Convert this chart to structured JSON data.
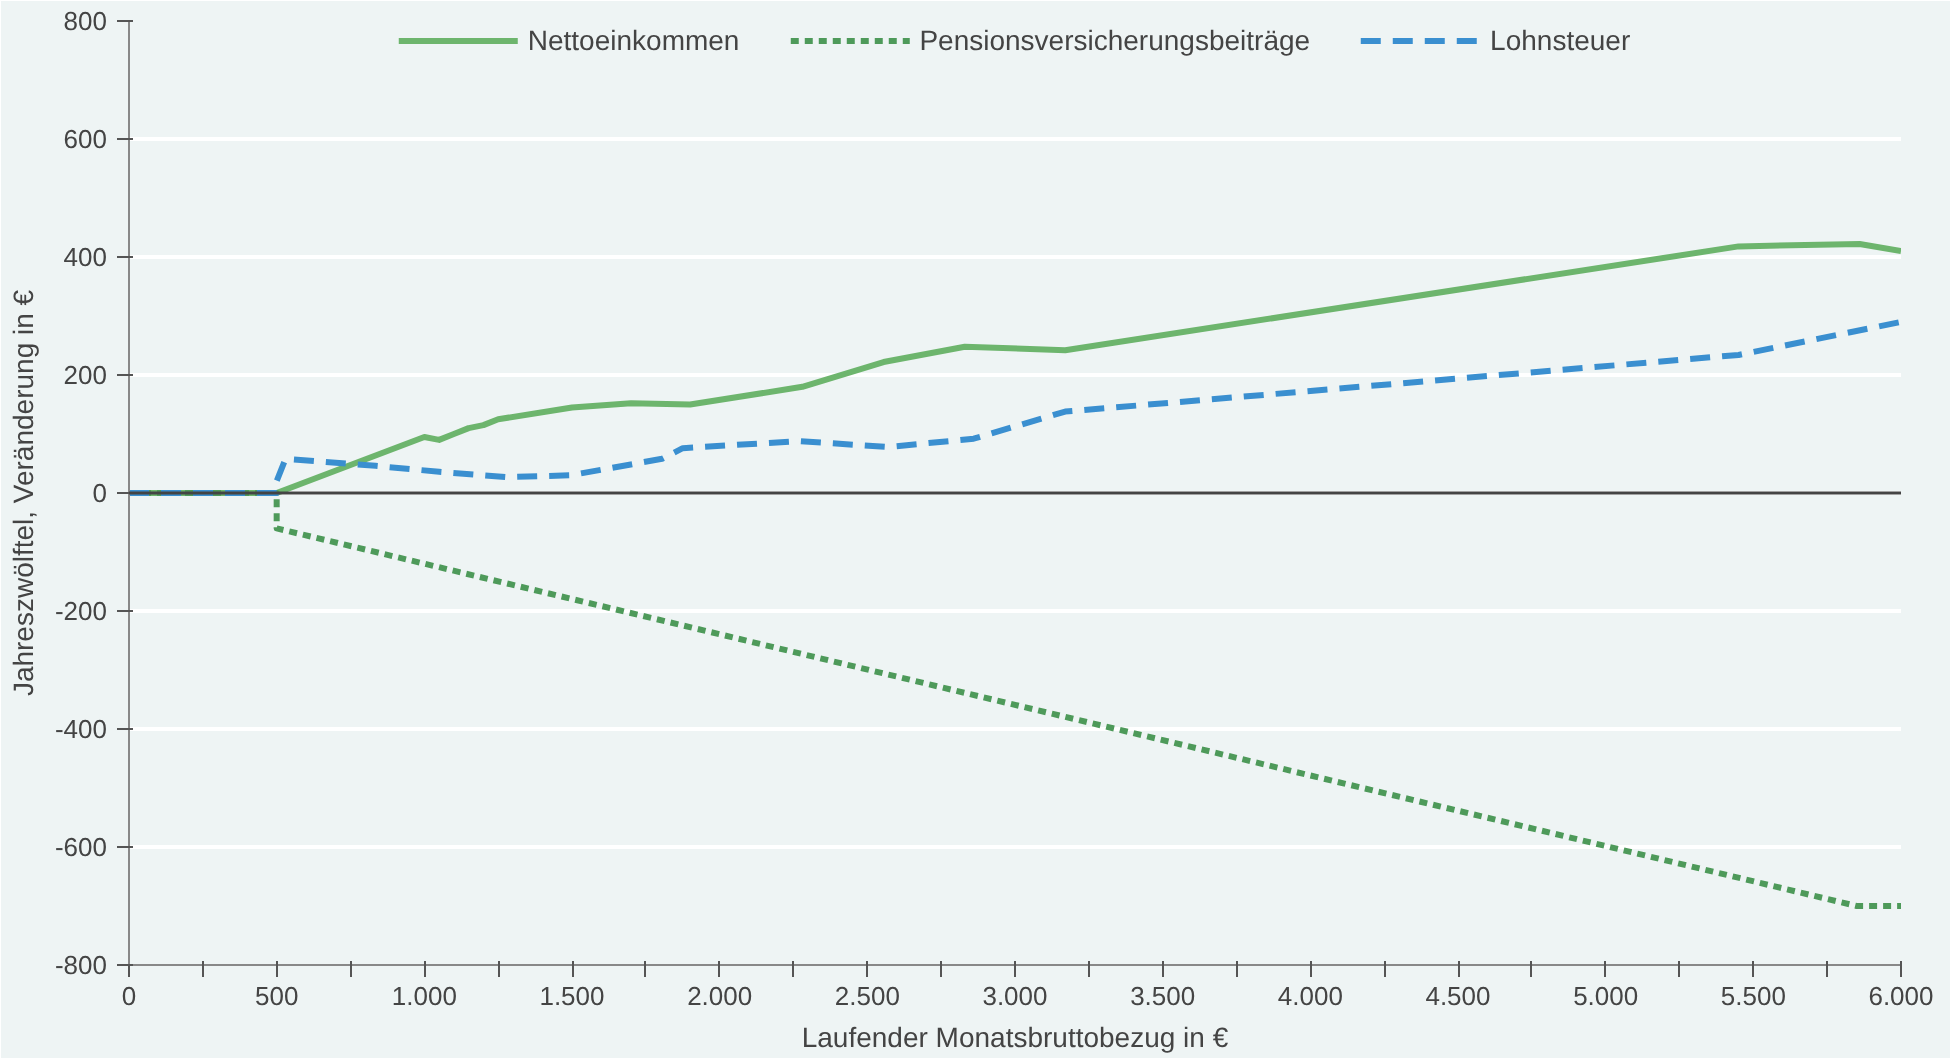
{
  "chart_data": {
    "type": "line",
    "xlabel": "Laufender Monatsbruttobezug in €",
    "ylabel": "Jahreszwölftel, Veränderung in €",
    "xlim": [
      0,
      6000
    ],
    "ylim": [
      -800,
      800
    ],
    "xticks": [
      0,
      {
        "value": 250,
        "label": null
      },
      500,
      {
        "value": 750,
        "label": null
      },
      {
        "value": 1000,
        "label": "1.000"
      },
      {
        "value": 1250,
        "label": null
      },
      {
        "value": 1500,
        "label": "1.500"
      },
      {
        "value": 1750,
        "label": null
      },
      {
        "value": 2000,
        "label": "2.000"
      },
      {
        "value": 2250,
        "label": null
      },
      {
        "value": 2500,
        "label": "2.500"
      },
      {
        "value": 2750,
        "label": null
      },
      {
        "value": 3000,
        "label": "3.000"
      },
      {
        "value": 3250,
        "label": null
      },
      {
        "value": 3500,
        "label": "3.500"
      },
      {
        "value": 3750,
        "label": null
      },
      {
        "value": 4000,
        "label": "4.000"
      },
      {
        "value": 4250,
        "label": null
      },
      {
        "value": 4500,
        "label": "4.500"
      },
      {
        "value": 4750,
        "label": null
      },
      {
        "value": 5000,
        "label": "5.000"
      },
      {
        "value": 5250,
        "label": null
      },
      {
        "value": 5500,
        "label": "5.500"
      },
      {
        "value": 5750,
        "label": null
      },
      {
        "value": 6000,
        "label": "6.000"
      }
    ],
    "yticks": [
      -800,
      -600,
      -400,
      -200,
      0,
      200,
      400,
      600,
      800
    ],
    "grid": "y",
    "legend": "top",
    "marker": "none",
    "series": [
      {
        "name": "Nettoeinkommen",
        "color": "#6db56d",
        "line_style": "solid",
        "x": [
          0,
          500,
          1000,
          1050,
          1100,
          1150,
          1200,
          1250,
          1500,
          1700,
          1900,
          2280,
          2555,
          2830,
          3170,
          5450,
          5860,
          6000
        ],
        "values": [
          0,
          0,
          95,
          90,
          100,
          110,
          115,
          125,
          145,
          152,
          150,
          180,
          222,
          248,
          242,
          418,
          422,
          410
        ]
      },
      {
        "name": "Pensionsversicherungsbeiträge",
        "color": "#4e9a5a",
        "line_style": "dotted",
        "x": [
          0,
          500,
          500,
          5850,
          6000
        ],
        "values": [
          0,
          0,
          -60,
          -700,
          -700
        ]
      },
      {
        "name": "Lohnsteuer",
        "color": "#3a8fd0",
        "line_style": "dashed",
        "x": [
          0,
          500,
          500,
          530,
          835,
          1050,
          1275,
          1495,
          1805,
          1875,
          2270,
          2570,
          2860,
          3170,
          5450,
          6000
        ],
        "values": [
          0,
          0,
          20,
          58,
          46,
          36,
          27,
          30,
          58,
          76,
          88,
          78,
          92,
          138,
          234,
          290
        ]
      }
    ]
  }
}
